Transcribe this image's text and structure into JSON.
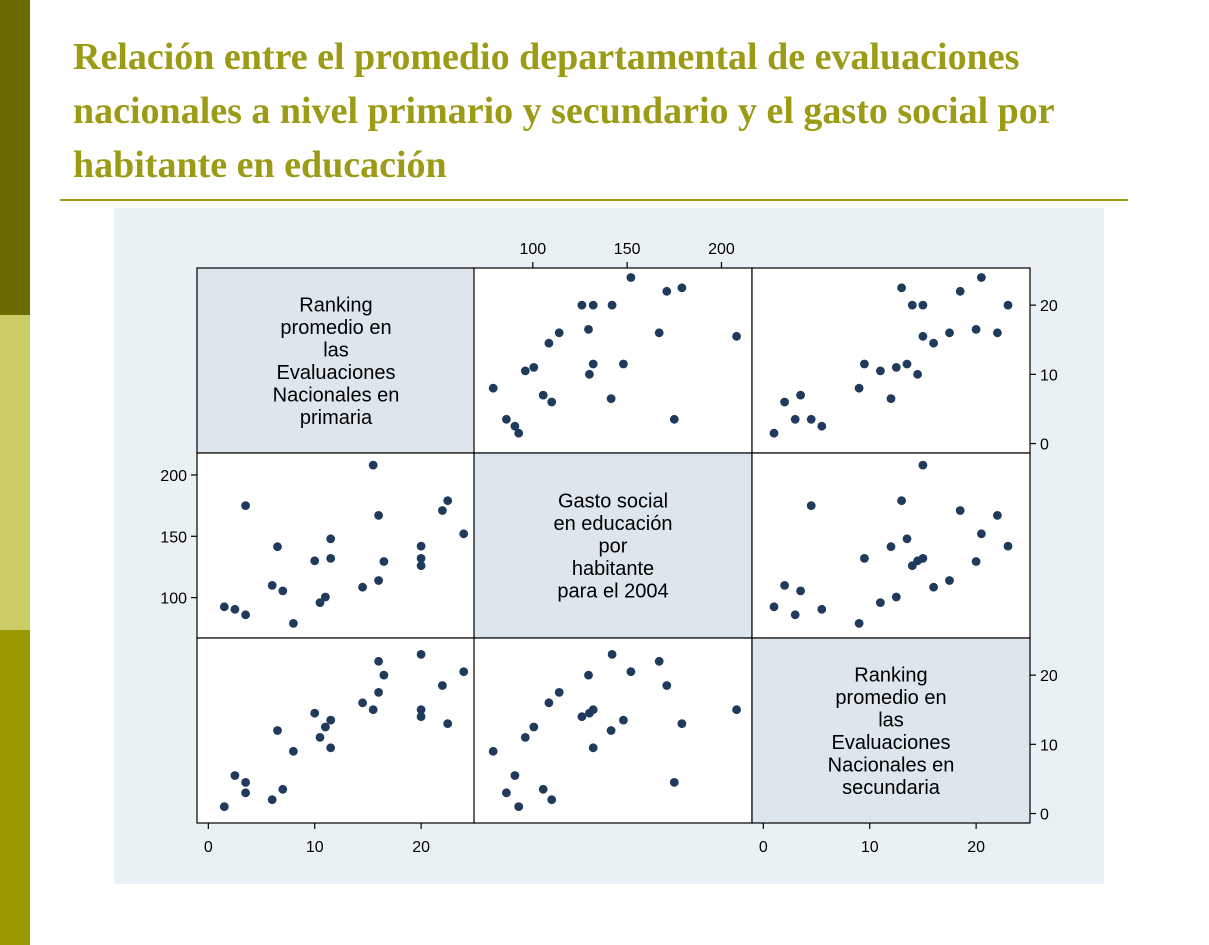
{
  "slide": {
    "title": "Relación entre el promedio departamental de evaluaciones nacionales a nivel primario y secundario y el gasto social por habitante en educación",
    "accent_colors": [
      "#6b6b00",
      "#cccc66",
      "#999900"
    ],
    "title_color": "#9b9b15"
  },
  "chart_data": {
    "type": "scatter",
    "subtype": "scatter-matrix",
    "variables": [
      {
        "key": "primaria",
        "label_lines": [
          "Ranking",
          "promedio en",
          "las",
          "Evaluaciones",
          "Nacionales en",
          "primaria"
        ],
        "range": [
          -0.5,
          24.5
        ],
        "ticks": [
          0,
          10,
          20
        ],
        "tick_labels": [
          "0",
          "10",
          "20"
        ]
      },
      {
        "key": "gasto",
        "label_lines": [
          "Gasto social",
          "en educación",
          "por",
          "habitante",
          "para el 2004"
        ],
        "range": [
          72,
          213
        ],
        "ticks": [
          100,
          150,
          200
        ],
        "tick_labels": [
          "100",
          "150",
          "200"
        ]
      },
      {
        "key": "secundaria",
        "label_lines": [
          "Ranking",
          "promedio en",
          "las",
          "Evaluaciones",
          "Nacionales en",
          "secundaria"
        ],
        "range": [
          -0.5,
          24.5
        ],
        "ticks": [
          0,
          10,
          20
        ],
        "tick_labels": [
          "0",
          "10",
          "20"
        ]
      }
    ],
    "observations": [
      {
        "primaria": 1.5,
        "gasto": 92.5,
        "secundaria": 1
      },
      {
        "primaria": 2.5,
        "gasto": 90.5,
        "secundaria": 5.5
      },
      {
        "primaria": 3.5,
        "gasto": 86,
        "secundaria": 3
      },
      {
        "primaria": 3.5,
        "gasto": 175,
        "secundaria": 4.5
      },
      {
        "primaria": 6,
        "gasto": 110,
        "secundaria": 2
      },
      {
        "primaria": 6.5,
        "gasto": 141.5,
        "secundaria": 12
      },
      {
        "primaria": 7,
        "gasto": 105.5,
        "secundaria": 3.5
      },
      {
        "primaria": 8,
        "gasto": 79,
        "secundaria": 9
      },
      {
        "primaria": 10,
        "gasto": 130,
        "secundaria": 14.5
      },
      {
        "primaria": 10.5,
        "gasto": 96,
        "secundaria": 11
      },
      {
        "primaria": 11,
        "gasto": 100.5,
        "secundaria": 12.5
      },
      {
        "primaria": 11.5,
        "gasto": 132,
        "secundaria": 9.5
      },
      {
        "primaria": 11.5,
        "gasto": 148,
        "secundaria": 13.5
      },
      {
        "primaria": 14.5,
        "gasto": 108.5,
        "secundaria": 16
      },
      {
        "primaria": 15.5,
        "gasto": 208,
        "secundaria": 15
      },
      {
        "primaria": 16,
        "gasto": 114,
        "secundaria": 17.5
      },
      {
        "primaria": 16,
        "gasto": 167,
        "secundaria": 22
      },
      {
        "primaria": 16.5,
        "gasto": 129.5,
        "secundaria": 20
      },
      {
        "primaria": 20,
        "gasto": 126,
        "secundaria": 14
      },
      {
        "primaria": 20,
        "gasto": 132,
        "secundaria": 15
      },
      {
        "primaria": 20,
        "gasto": 142,
        "secundaria": 23
      },
      {
        "primaria": 22,
        "gasto": 171,
        "secundaria": 18.5
      },
      {
        "primaria": 22.5,
        "gasto": 179,
        "secundaria": 13
      },
      {
        "primaria": 24,
        "gasto": 152,
        "secundaria": 20.5
      }
    ],
    "layout": "3x3",
    "diagonal_labels": true,
    "marker_color": "#1f3a5a",
    "panel_background": "#ffffff",
    "diagonal_background": "#dce6ec",
    "plot_background": "#eaf1f4"
  }
}
